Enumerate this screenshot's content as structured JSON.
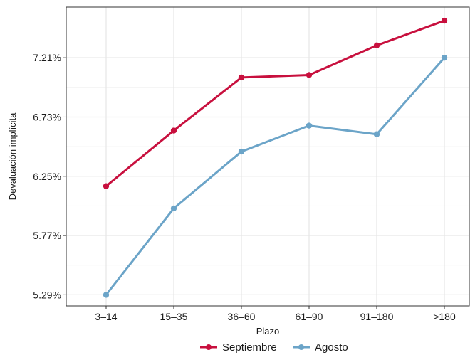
{
  "chart_data": {
    "type": "line",
    "categories": [
      "3–14",
      "15–35",
      "36–60",
      "61–90",
      "91–180",
      ">180"
    ],
    "series": [
      {
        "name": "Septiembre",
        "color": "#c8103e",
        "values": [
          6.17,
          6.62,
          7.05,
          7.07,
          7.31,
          7.51
        ]
      },
      {
        "name": "Agosto",
        "color": "#6ba4c8",
        "values": [
          5.29,
          5.99,
          6.45,
          6.66,
          6.59,
          7.21
        ]
      }
    ],
    "xlabel": "Plazo",
    "ylabel": "Devaluación implícita",
    "yticks": [
      "5.29%",
      "5.77%",
      "6.25%",
      "6.73%",
      "7.21%"
    ],
    "ytick_values": [
      5.29,
      5.77,
      6.25,
      6.73,
      7.21
    ],
    "ylim": [
      5.2,
      7.62
    ],
    "grid": true,
    "legend_position": "bottom"
  }
}
